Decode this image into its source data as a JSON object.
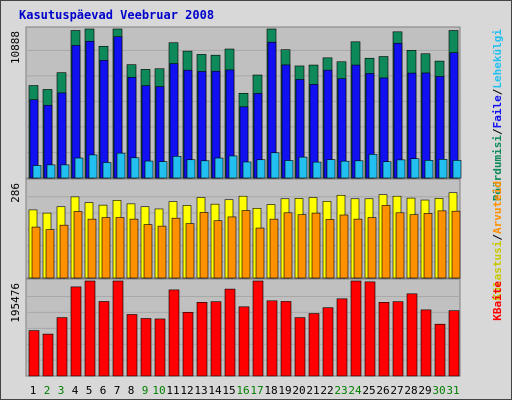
{
  "title": "Kasutuspäevad Veebruar 2008",
  "colors": {
    "visits": "#0e8a5a",
    "pages": "#1010f0",
    "files": "#22c0f0",
    "unique": "#ffff00",
    "sites": "#ff9000",
    "kbytes": "#ff0000",
    "weekend_day": "#008000",
    "weekday_day": "#000000"
  },
  "legend": {
    "top": [
      {
        "text": "Pöördumisi",
        "color": "#0e8a5a"
      },
      {
        "text": "/",
        "color": "#000000"
      },
      {
        "text": "Faile",
        "color": "#1010f0"
      },
      {
        "text": "/",
        "color": "#000000"
      },
      {
        "text": "Lehekülgi",
        "color": "#22c0f0"
      }
    ],
    "middle": [
      {
        "text": "Külastusi",
        "color": "#c8c800"
      },
      {
        "text": "/",
        "color": "#000000"
      },
      {
        "text": "Arvuteid",
        "color": "#ff9000"
      }
    ],
    "bottom": [
      {
        "text": "KBaite",
        "color": "#ff0000"
      }
    ]
  },
  "chart_data": {
    "type": "bar",
    "categories": [
      "1",
      "2",
      "3",
      "4",
      "5",
      "6",
      "7",
      "8",
      "9",
      "10",
      "11",
      "12",
      "13",
      "14",
      "15",
      "16",
      "17",
      "18",
      "19",
      "20",
      "21",
      "22",
      "23",
      "24",
      "25",
      "26",
      "27",
      "28",
      "29",
      "30",
      "31"
    ],
    "weekend_days": [
      "2",
      "3",
      "9",
      "10",
      "16",
      "17",
      "23",
      "24",
      "30",
      "31"
    ],
    "panels": [
      {
        "axis_max_label": "10888",
        "ymax": 10888,
        "series": [
          {
            "name": "Pöördumisi",
            "values": [
              7040,
              6740,
              8020,
              11230,
              11660,
              10030,
              12180,
              8630,
              8270,
              8320,
              10300,
              9660,
              9410,
              9350,
              9820,
              6450,
              7840,
              11430,
              9770,
              8530,
              8600,
              9150,
              8850,
              10370,
              9120,
              9250,
              11130,
              9720,
              9460,
              8900,
              11230
            ]
          },
          {
            "name": "Faile",
            "values": [
              5960,
              5540,
              6480,
              10090,
              10410,
              8960,
              10760,
              7660,
              7030,
              6960,
              8710,
              8210,
              8110,
              8130,
              8230,
              5420,
              6440,
              10340,
              8610,
              7500,
              7130,
              8210,
              7560,
              8600,
              7960,
              7620,
              10260,
              7990,
              8000,
              7730,
              9540
            ]
          },
          {
            "name": "Lehekülgi",
            "values": [
              950,
              1000,
              1000,
              1520,
              1760,
              1180,
              1890,
              1540,
              1290,
              1250,
              1650,
              1390,
              1310,
              1520,
              1680,
              1220,
              1390,
              1920,
              1330,
              1590,
              1210,
              1400,
              1280,
              1310,
              1800,
              1240,
              1380,
              1470,
              1340,
              1420,
              1340
            ]
          }
        ]
      },
      {
        "axis_max_label": "286",
        "ymax": 286,
        "series": [
          {
            "name": "Külastusi",
            "values": [
              214,
              204,
              224,
              255,
              237,
              229,
              244,
              233,
              224,
              217,
              240,
              228,
              253,
              232,
              246,
              257,
              219,
              231,
              249,
              250,
              253,
              241,
              260,
              249,
              249,
              262,
              257,
              251,
              245,
              250,
              268
            ]
          },
          {
            "name": "Arvuteid",
            "values": [
              160,
              152,
              166,
              209,
              185,
              190,
              190,
              185,
              168,
              163,
              188,
              171,
              206,
              180,
              192,
              212,
              157,
              185,
              205,
              199,
              204,
              184,
              198,
              185,
              190,
              228,
              205,
              199,
              203,
              211,
              210
            ]
          }
        ]
      },
      {
        "axis_max_label": "195476",
        "ymax": 195476,
        "series": [
          {
            "name": "KBaite",
            "values": [
              99780,
              92040,
              128280,
              195690,
              251620,
              163620,
              225980,
              135090,
              126260,
              125230,
              189100,
              139950,
              161850,
              163310,
              190850,
              151960,
              244020,
              165120,
              163740,
              128280,
              137200,
              150000,
              169510,
              211380,
              206770,
              161850,
              163310,
              180530,
              145210,
              113810,
              143490
            ]
          }
        ]
      }
    ]
  }
}
